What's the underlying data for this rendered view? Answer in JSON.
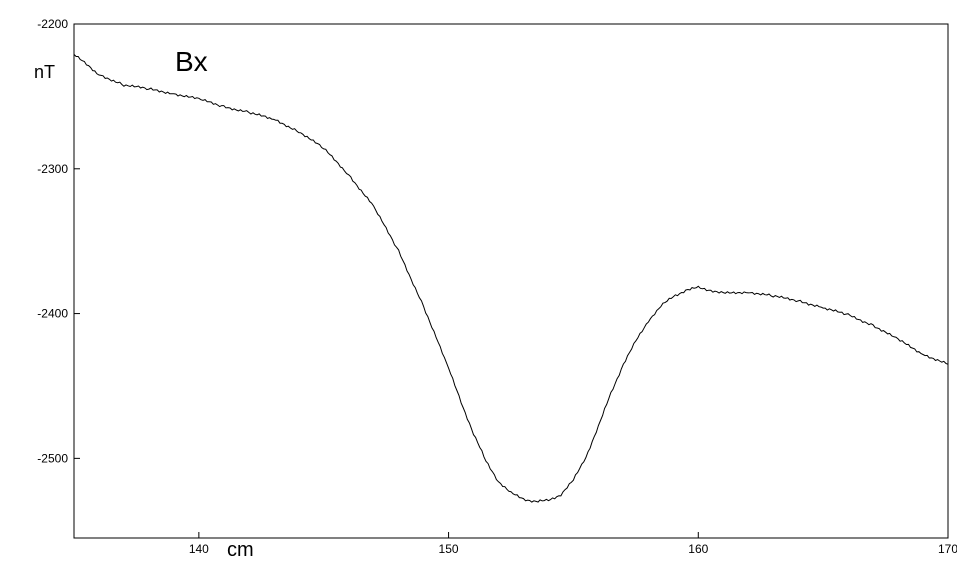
{
  "chart_data": {
    "type": "line",
    "title": "Bx",
    "ylabel": "nT",
    "xlabel": "cm",
    "xlim": [
      135,
      170
    ],
    "ylim": [
      -2555,
      -2200
    ],
    "x_ticks": [
      140,
      150,
      160,
      170
    ],
    "x_tick_labels": [
      "140",
      "150",
      "160",
      "170"
    ],
    "y_ticks": [
      -2200,
      -2300,
      -2400,
      -2500
    ],
    "y_tick_labels": [
      "-2200",
      "-2300",
      "-2400",
      "-2500"
    ],
    "grid": false,
    "series": [
      {
        "color": "#000000",
        "x": [
          135,
          136,
          137,
          138,
          139,
          140,
          141,
          142,
          143,
          144,
          145,
          146,
          147,
          148,
          149,
          150,
          150.5,
          151,
          151.5,
          152,
          152.5,
          153,
          153.5,
          154,
          154.5,
          155,
          155.5,
          156,
          156.5,
          157,
          157.5,
          158,
          158.5,
          159,
          159.5,
          160,
          160.5,
          161,
          162,
          163,
          164,
          165,
          166,
          167,
          168,
          169,
          170
        ],
        "y": [
          -2221,
          -2235,
          -2242,
          -2245,
          -2248,
          -2252,
          -2257,
          -2261,
          -2266,
          -2274,
          -2286,
          -2304,
          -2326,
          -2357,
          -2395,
          -2438,
          -2461,
          -2483,
          -2502,
          -2516,
          -2524,
          -2528,
          -2530,
          -2529,
          -2525,
          -2515,
          -2499,
          -2478,
          -2455,
          -2435,
          -2419,
          -2405,
          -2395,
          -2388,
          -2384,
          -2382,
          -2384,
          -2386,
          -2385,
          -2388,
          -2391,
          -2396,
          -2401,
          -2408,
          -2418,
          -2428,
          -2435
        ]
      }
    ]
  }
}
